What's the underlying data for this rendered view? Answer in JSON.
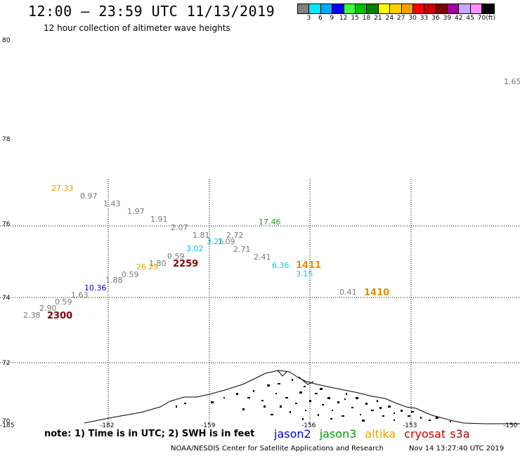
{
  "header": {
    "title": "12:00 – 23:59 UTC 11/13/2019",
    "subtitle": "12 hour collection of altimeter wave heights"
  },
  "color_scale": {
    "unit": "(ft)",
    "swatches": [
      "#808080",
      "#00e8ff",
      "#00a8ff",
      "#0000ff",
      "#40ff40",
      "#00c000",
      "#008000",
      "#ffff00",
      "#ffd000",
      "#ffa000",
      "#ff0000",
      "#c80000",
      "#800000",
      "#a000a0",
      "#c8a8ff",
      "#ff90ff",
      "#000000"
    ],
    "labels": [
      "3",
      "6",
      "9",
      "12",
      "15",
      "18",
      "21",
      "24",
      "27",
      "30",
      "33",
      "36",
      "39",
      "42",
      "45",
      "70"
    ]
  },
  "axes": {
    "lat_labels": [
      "80",
      "78",
      "76",
      "74",
      "72",
      "70"
    ],
    "lon_labels": [
      "-185",
      "-182",
      "-159",
      "-156",
      "-153",
      "-150"
    ]
  },
  "wave_labels": [
    {
      "text": "27.33",
      "color": "#e0a000"
    },
    {
      "text": "0.97",
      "color": "#787878"
    },
    {
      "text": "1.43",
      "color": "#787878"
    },
    {
      "text": "1.97",
      "color": "#787878"
    },
    {
      "text": "1.91",
      "color": "#787878"
    },
    {
      "text": "2.07",
      "color": "#787878"
    },
    {
      "text": "1.81",
      "color": "#787878"
    },
    {
      "text": "2.72",
      "color": "#787878"
    },
    {
      "text": "3.25",
      "color": "#00c8e8"
    },
    {
      "text": "1.09",
      "color": "#787878"
    },
    {
      "text": "3.02",
      "color": "#00c8e8"
    },
    {
      "text": "2.71",
      "color": "#787878"
    },
    {
      "text": "17.46",
      "color": "#20a020"
    },
    {
      "text": "0.59",
      "color": "#787878"
    },
    {
      "text": "1.80",
      "color": "#787878"
    },
    {
      "text": "26.25",
      "color": "#e0a000"
    },
    {
      "text": "2.41",
      "color": "#787878"
    },
    {
      "text": "6.36",
      "color": "#00c8e8"
    },
    {
      "text": "3.15",
      "color": "#00c8e8"
    },
    {
      "text": "0.59",
      "color": "#787878"
    },
    {
      "text": "1.88",
      "color": "#787878"
    },
    {
      "text": "10.36",
      "color": "#0000d0"
    },
    {
      "text": "1.63",
      "color": "#787878"
    },
    {
      "text": "0.59",
      "color": "#787878"
    },
    {
      "text": "2.90",
      "color": "#787878"
    },
    {
      "text": "2.38",
      "color": "#787878"
    },
    {
      "text": "0.41",
      "color": "#787878"
    },
    {
      "text": "1.65",
      "color": "#787878"
    }
  ],
  "pass_labels": [
    {
      "text": "2259",
      "color": "#800000"
    },
    {
      "text": "2300",
      "color": "#800000"
    },
    {
      "text": "1411",
      "color": "#e09000"
    },
    {
      "text": "1410",
      "color": "#e09000"
    }
  ],
  "footer": {
    "note": "note: 1) Time is in UTC; 2) SWH is in feet",
    "legend": [
      {
        "name": "jason2",
        "color": "#0000c8"
      },
      {
        "name": "jason3",
        "color": "#00a000"
      },
      {
        "name": "altika",
        "color": "#f0a000"
      },
      {
        "name": "cryosat",
        "color": "#d00000"
      },
      {
        "name": "s3a",
        "color": "#b00000"
      }
    ],
    "credit": "NOAA/NESDIS Center for Satellite Applications and Research",
    "timestamp": "Nov 14 13:27:40 UTC 2019"
  }
}
